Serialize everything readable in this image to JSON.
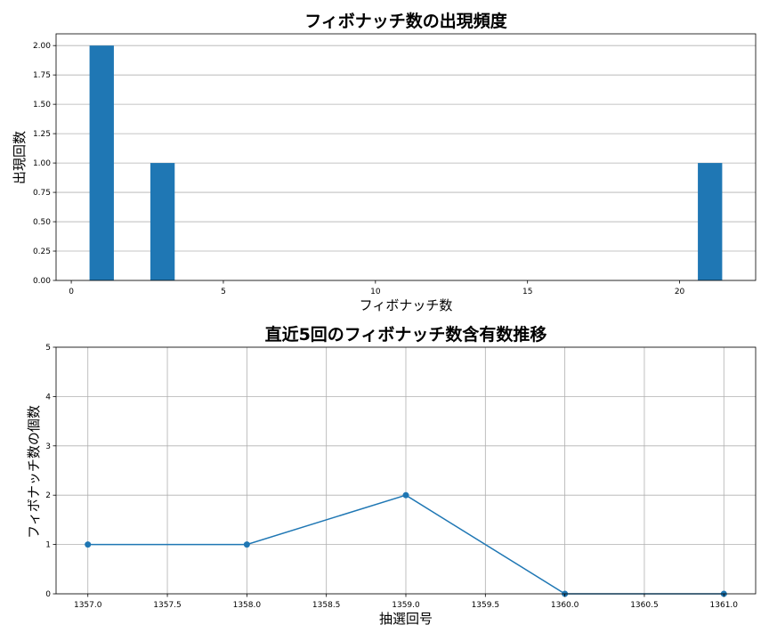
{
  "chart_data": [
    {
      "type": "bar",
      "title": "フィボナッチ数の出現頻度",
      "xlabel": "フィボナッチ数",
      "ylabel": "出現回数",
      "x": [
        1,
        3,
        21
      ],
      "values": [
        2,
        1,
        1
      ],
      "xlim": [
        -0.5,
        22.5
      ],
      "ylim": [
        0,
        2.1
      ],
      "xticks": [
        0,
        5,
        10,
        15,
        20
      ],
      "yticks": [
        0.0,
        0.25,
        0.5,
        0.75,
        1.0,
        1.25,
        1.5,
        1.75,
        2.0
      ],
      "grid": "y",
      "bar_color": "#1f77b4"
    },
    {
      "type": "line",
      "title": "直近5回のフィボナッチ数含有数推移",
      "xlabel": "抽選回号",
      "ylabel": "フィボナッチ数の個数",
      "x": [
        1357.0,
        1358.0,
        1359.0,
        1360.0,
        1361.0
      ],
      "values": [
        1,
        1,
        2,
        0,
        0
      ],
      "xlim": [
        1356.8,
        1361.2
      ],
      "ylim": [
        0,
        5
      ],
      "xticks": [
        1357.0,
        1357.5,
        1358.0,
        1358.5,
        1359.0,
        1359.5,
        1360.0,
        1360.5,
        1361.0
      ],
      "yticks": [
        0,
        1,
        2,
        3,
        4,
        5
      ],
      "grid": "both",
      "line_color": "#1f77b4",
      "marker": "circle"
    }
  ]
}
